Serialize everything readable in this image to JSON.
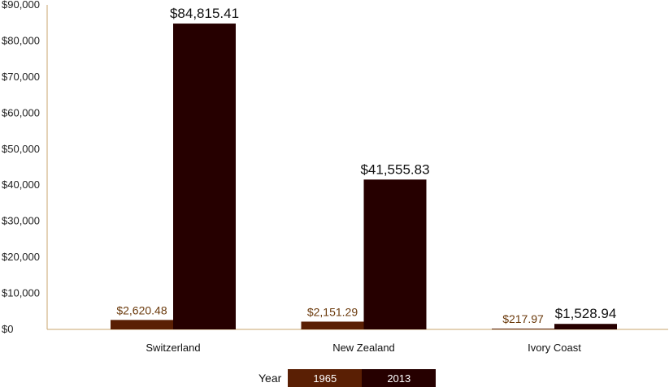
{
  "chart_data": {
    "type": "bar",
    "categories": [
      "Switzerland",
      "New Zealand",
      "Ivory Coast"
    ],
    "series": [
      {
        "name": "1965",
        "color": "#5a1f04",
        "values": [
          2620.48,
          2151.29,
          217.97
        ],
        "labels": [
          "$2,620.48",
          "$2,151.29",
          "$217.97"
        ]
      },
      {
        "name": "2013",
        "color": "#260000",
        "values": [
          84815.41,
          41555.83,
          1528.94
        ],
        "labels": [
          "$84,815.41",
          "$41,555.83",
          "$1,528.94"
        ]
      }
    ],
    "yticks": [
      0,
      10000,
      20000,
      30000,
      40000,
      50000,
      60000,
      70000,
      80000,
      90000
    ],
    "ytick_labels": [
      "$0",
      "$10,000",
      "$20,000",
      "$30,000",
      "$40,000",
      "$50,000",
      "$60,000",
      "$70,000",
      "$80,000",
      "$90,000"
    ],
    "ylim": [
      0,
      90000
    ],
    "title": "",
    "xlabel": "",
    "ylabel": "",
    "legend_title": "Year",
    "legend_position": "bottom-center",
    "grid": false,
    "axis_color": "#c8a46e",
    "label_color_1965": "#6b3a0c",
    "label_color_2013": "#111111"
  }
}
